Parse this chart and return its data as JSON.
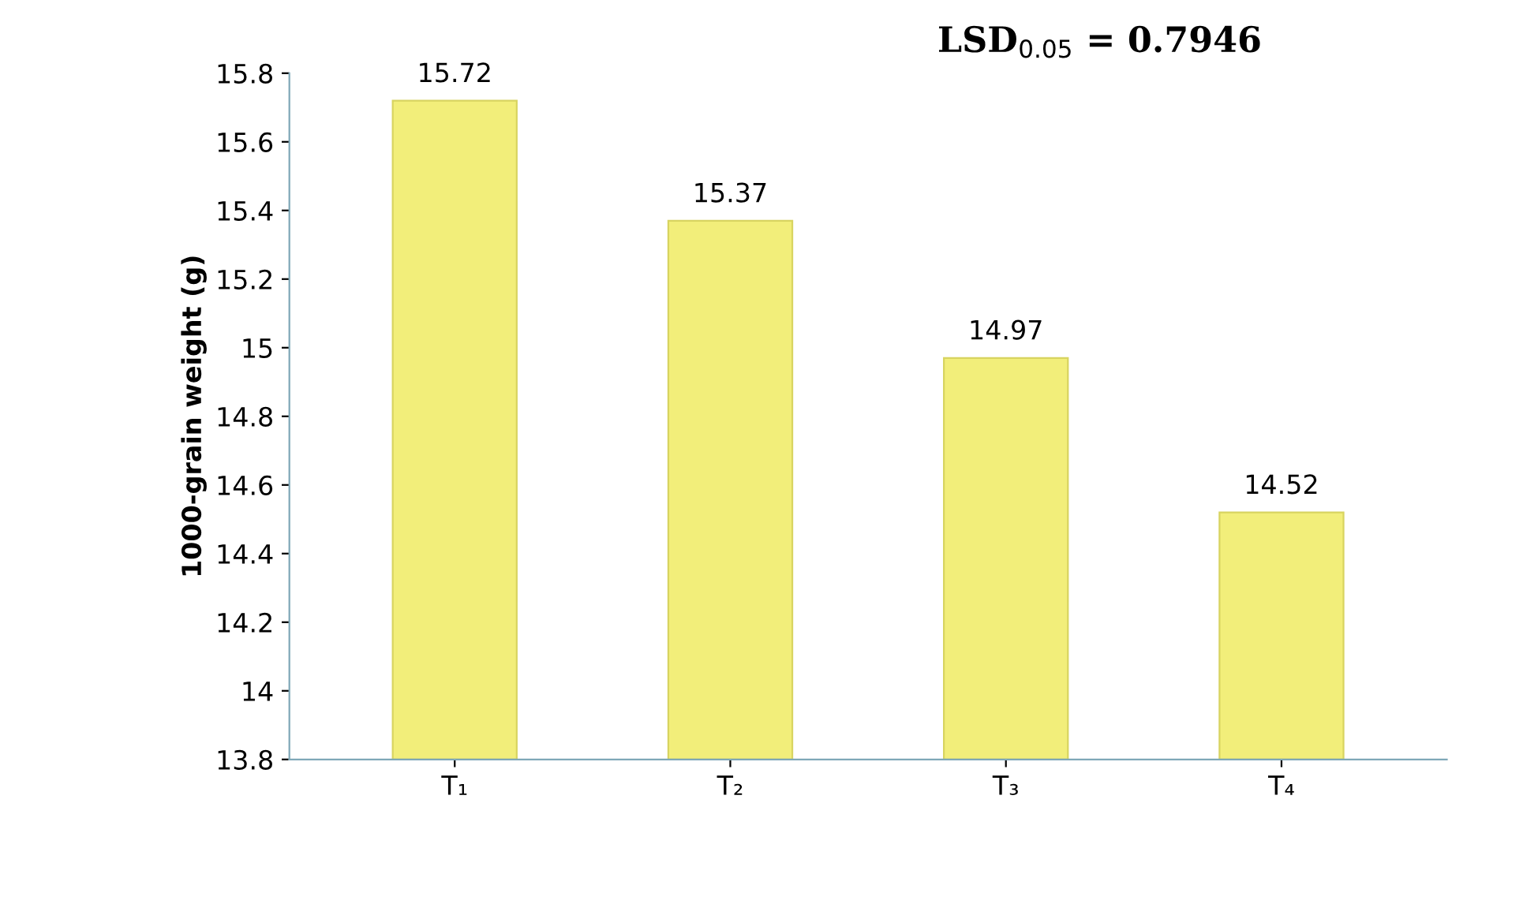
{
  "chart_data": {
    "type": "bar",
    "categories": [
      "T₁",
      "T₂",
      "T₃",
      "T₄"
    ],
    "values": [
      15.72,
      15.37,
      14.97,
      14.52
    ],
    "color": "#f2ee7a",
    "ylabel": "1000-grain weight (g)",
    "ylim": [
      13.8,
      15.8
    ],
    "yticks": [
      13.8,
      14,
      14.2,
      14.4,
      14.6,
      14.8,
      15,
      15.2,
      15.4,
      15.6,
      15.8
    ],
    "data_labels": true,
    "grid": false,
    "annotations": [
      "LSD$_{0.05}$ = 0.7946"
    ]
  }
}
